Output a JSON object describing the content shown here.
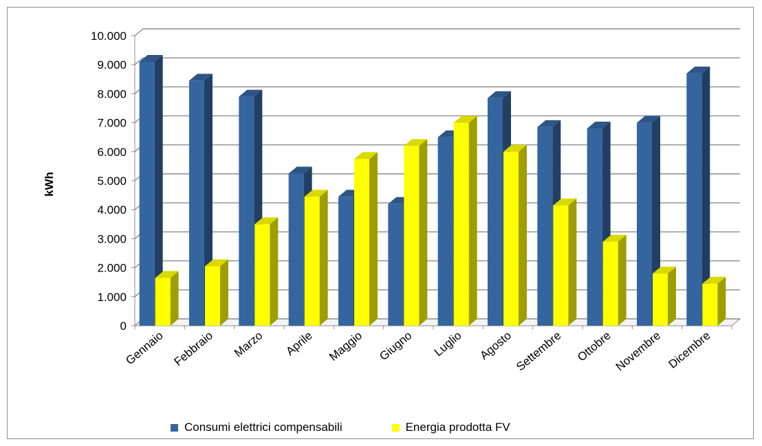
{
  "chart_data": {
    "type": "bar",
    "title": "",
    "xlabel": "",
    "ylabel": "kWh",
    "ylim": [
      0,
      10000
    ],
    "ytick_labels": [
      "0",
      "1.000",
      "2.000",
      "3.000",
      "4.000",
      "5.000",
      "6.000",
      "7.000",
      "8.000",
      "9.000",
      "10.000"
    ],
    "categories": [
      "Gennaio",
      "Febbraio",
      "Marzo",
      "Aprile",
      "Maggio",
      "Giugno",
      "Luglio",
      "Agosto",
      "Settembre",
      "Ottobre",
      "Novembre",
      "Dicembre"
    ],
    "series": [
      {
        "name": "Consumi elettrici compensabili",
        "color": "#35659F",
        "values": [
          9100,
          8450,
          7900,
          5250,
          4450,
          4200,
          6500,
          7850,
          6850,
          6800,
          7000,
          8700
        ]
      },
      {
        "name": "Energia prodotta FV",
        "color": "#FFFF00",
        "values": [
          1650,
          2050,
          3500,
          4450,
          5750,
          6200,
          7000,
          6000,
          4150,
          2900,
          1800,
          1450
        ]
      }
    ],
    "grid": true,
    "style": "3d-columns",
    "legend_position": "bottom"
  }
}
